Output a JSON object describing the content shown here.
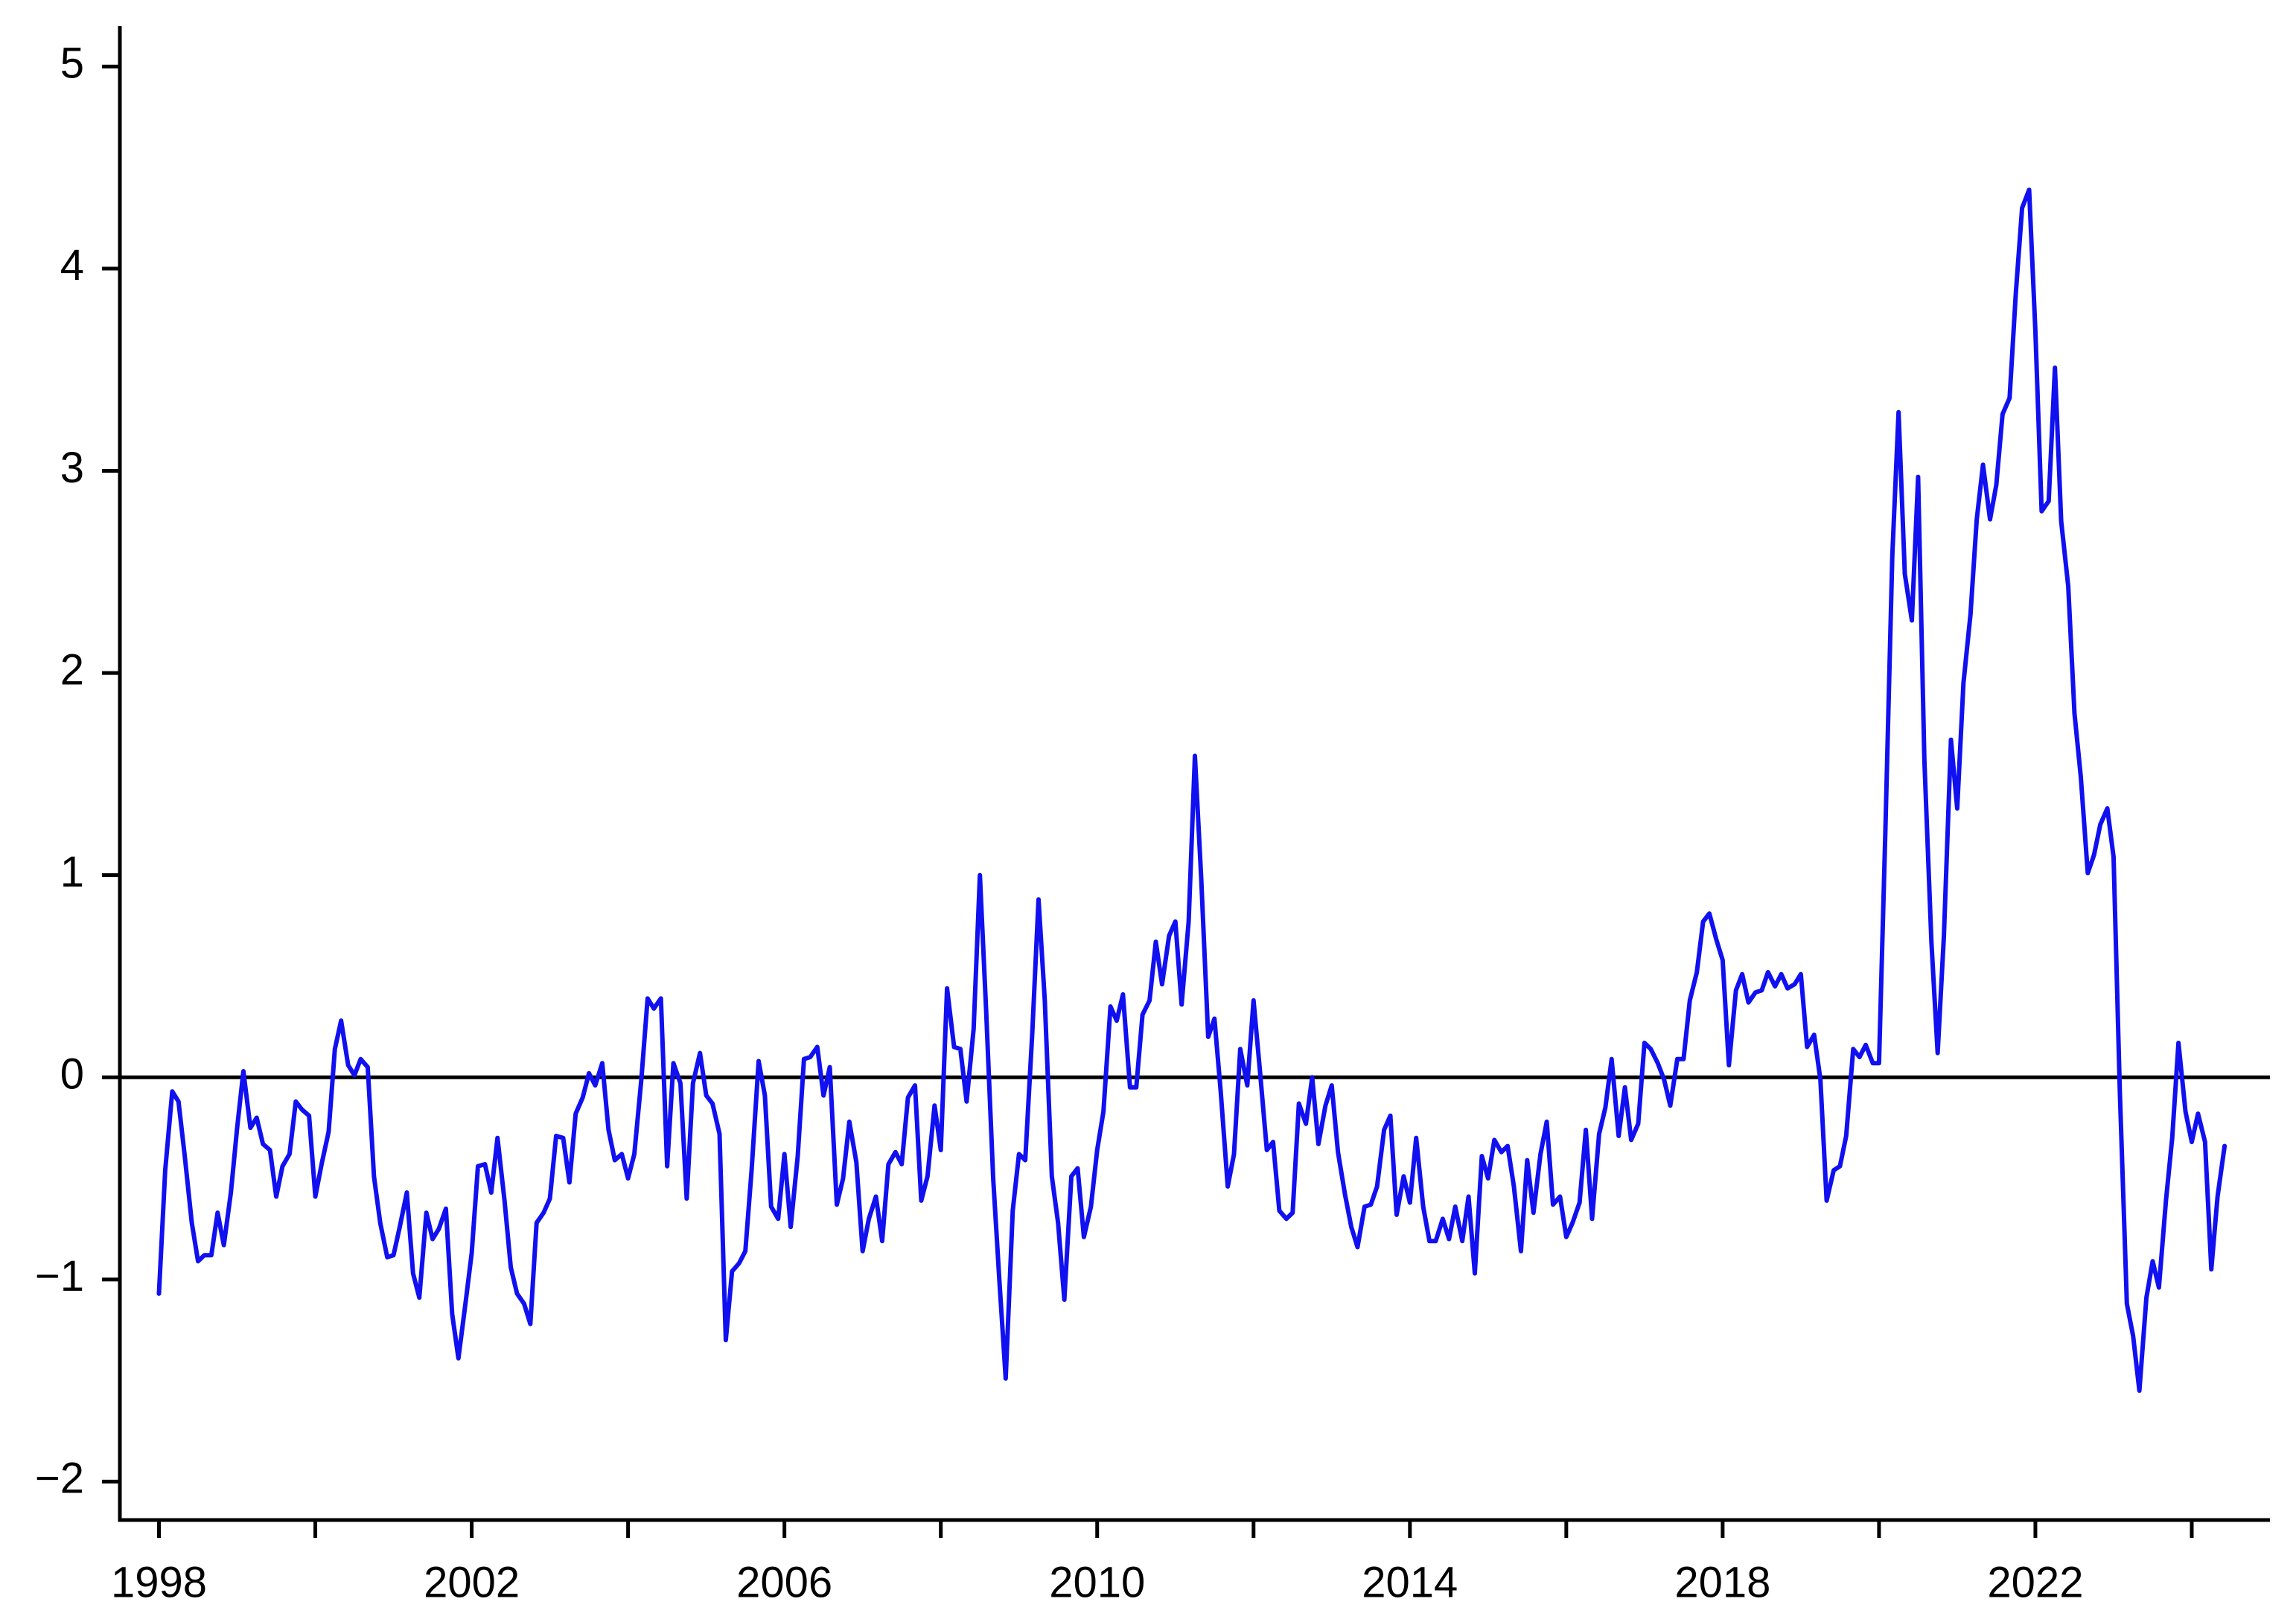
{
  "chart_data": {
    "type": "line",
    "x": [
      1998,
      1998.08,
      1998.17,
      1998.25,
      1998.33,
      1998.42,
      1998.5,
      1998.58,
      1998.67,
      1998.75,
      1998.83,
      1998.92,
      1999,
      1999.08,
      1999.17,
      1999.25,
      1999.33,
      1999.42,
      1999.5,
      1999.58,
      1999.67,
      1999.75,
      1999.83,
      1999.92,
      2000,
      2000.08,
      2000.17,
      2000.25,
      2000.33,
      2000.42,
      2000.5,
      2000.58,
      2000.67,
      2000.75,
      2000.83,
      2000.92,
      2001,
      2001.08,
      2001.17,
      2001.25,
      2001.33,
      2001.42,
      2001.5,
      2001.58,
      2001.67,
      2001.75,
      2001.83,
      2001.92,
      2002,
      2002.08,
      2002.17,
      2002.25,
      2002.33,
      2002.42,
      2002.5,
      2002.58,
      2002.67,
      2002.75,
      2002.83,
      2002.92,
      2003,
      2003.08,
      2003.17,
      2003.25,
      2003.33,
      2003.42,
      2003.5,
      2003.58,
      2003.67,
      2003.75,
      2003.83,
      2003.92,
      2004,
      2004.08,
      2004.17,
      2004.25,
      2004.33,
      2004.42,
      2004.5,
      2004.58,
      2004.67,
      2004.75,
      2004.83,
      2004.92,
      2005,
      2005.08,
      2005.17,
      2005.25,
      2005.33,
      2005.42,
      2005.5,
      2005.58,
      2005.67,
      2005.75,
      2005.83,
      2005.92,
      2006,
      2006.08,
      2006.17,
      2006.25,
      2006.33,
      2006.42,
      2006.5,
      2006.58,
      2006.67,
      2006.75,
      2006.83,
      2006.92,
      2007,
      2007.08,
      2007.17,
      2007.25,
      2007.33,
      2007.42,
      2007.5,
      2007.58,
      2007.67,
      2007.75,
      2007.83,
      2007.92,
      2008,
      2008.08,
      2008.17,
      2008.25,
      2008.33,
      2008.42,
      2008.5,
      2008.58,
      2008.67,
      2008.75,
      2008.83,
      2008.92,
      2009,
      2009.08,
      2009.17,
      2009.25,
      2009.33,
      2009.42,
      2009.5,
      2009.58,
      2009.67,
      2009.75,
      2009.83,
      2009.92,
      2010,
      2010.08,
      2010.17,
      2010.25,
      2010.33,
      2010.42,
      2010.5,
      2010.58,
      2010.67,
      2010.75,
      2010.83,
      2010.92,
      2011,
      2011.08,
      2011.17,
      2011.25,
      2011.33,
      2011.42,
      2011.5,
      2011.58,
      2011.67,
      2011.75,
      2011.83,
      2011.92,
      2012,
      2012.08,
      2012.17,
      2012.25,
      2012.33,
      2012.42,
      2012.5,
      2012.58,
      2012.67,
      2012.75,
      2012.83,
      2012.92,
      2013,
      2013.08,
      2013.17,
      2013.25,
      2013.33,
      2013.42,
      2013.5,
      2013.58,
      2013.67,
      2013.75,
      2013.83,
      2013.92,
      2014,
      2014.08,
      2014.17,
      2014.25,
      2014.33,
      2014.42,
      2014.5,
      2014.58,
      2014.67,
      2014.75,
      2014.83,
      2014.92,
      2015,
      2015.08,
      2015.17,
      2015.25,
      2015.33,
      2015.42,
      2015.5,
      2015.58,
      2015.67,
      2015.75,
      2015.83,
      2015.92,
      2016,
      2016.08,
      2016.17,
      2016.25,
      2016.33,
      2016.42,
      2016.5,
      2016.58,
      2016.67,
      2016.75,
      2016.83,
      2016.92,
      2017,
      2017.08,
      2017.17,
      2017.25,
      2017.33,
      2017.42,
      2017.5,
      2017.58,
      2017.67,
      2017.75,
      2017.83,
      2017.92,
      2018,
      2018.08,
      2018.17,
      2018.25,
      2018.33,
      2018.42,
      2018.5,
      2018.58,
      2018.67,
      2018.75,
      2018.83,
      2018.92,
      2019,
      2019.08,
      2019.17,
      2019.25,
      2019.33,
      2019.42,
      2019.5,
      2019.58,
      2019.67,
      2019.75,
      2019.83,
      2019.92,
      2020,
      2020.08,
      2020.17,
      2020.25,
      2020.33,
      2020.42,
      2020.5,
      2020.58,
      2020.67,
      2020.75,
      2020.83,
      2020.92,
      2021,
      2021.08,
      2021.17,
      2021.25,
      2021.33,
      2021.42,
      2021.5,
      2021.58,
      2021.67,
      2021.75,
      2021.83,
      2021.92,
      2022,
      2022.08,
      2022.17,
      2022.25,
      2022.33,
      2022.42,
      2022.5,
      2022.58,
      2022.67,
      2022.75,
      2022.83,
      2022.92,
      2023,
      2023.08,
      2023.17,
      2023.25,
      2023.33,
      2023.42,
      2023.5,
      2023.58,
      2023.67,
      2023.75,
      2023.83,
      2023.92,
      2024,
      2024.08,
      2024.17,
      2024.25,
      2024.33,
      2024.42
    ],
    "series": [
      {
        "color": "#1010f0",
        "values": [
          -1.07,
          -0.46,
          -0.07,
          -0.12,
          -0.39,
          -0.72,
          -0.91,
          -0.88,
          -0.88,
          -0.67,
          -0.83,
          -0.57,
          -0.25,
          0.03,
          -0.25,
          -0.2,
          -0.33,
          -0.36,
          -0.59,
          -0.44,
          -0.38,
          -0.12,
          -0.16,
          -0.19,
          -0.59,
          -0.43,
          -0.27,
          0.14,
          0.28,
          0.06,
          0.01,
          0.09,
          0.05,
          -0.49,
          -0.72,
          -0.89,
          -0.88,
          -0.74,
          -0.57,
          -0.97,
          -1.09,
          -0.67,
          -0.8,
          -0.75,
          -0.65,
          -1.17,
          -1.39,
          -1.12,
          -0.87,
          -0.44,
          -0.43,
          -0.57,
          -0.3,
          -0.61,
          -0.94,
          -1.07,
          -1.12,
          -1.22,
          -0.72,
          -0.67,
          -0.6,
          -0.29,
          -0.3,
          -0.52,
          -0.18,
          -0.1,
          0.02,
          -0.04,
          0.07,
          -0.26,
          -0.41,
          -0.38,
          -0.5,
          -0.38,
          -0.01,
          0.39,
          0.34,
          0.39,
          -0.44,
          0.07,
          -0.03,
          -0.6,
          -0.03,
          0.12,
          -0.09,
          -0.13,
          -0.28,
          -1.3,
          -0.96,
          -0.92,
          -0.86,
          -0.46,
          0.08,
          -0.09,
          -0.64,
          -0.7,
          -0.38,
          -0.74,
          -0.39,
          0.09,
          0.1,
          0.15,
          -0.09,
          0.05,
          -0.63,
          -0.5,
          -0.22,
          -0.42,
          -0.86,
          -0.7,
          -0.59,
          -0.81,
          -0.43,
          -0.37,
          -0.43,
          -0.1,
          -0.04,
          -0.61,
          -0.49,
          -0.14,
          -0.36,
          0.44,
          0.15,
          0.14,
          -0.12,
          0.24,
          1.0,
          0.33,
          -0.5,
          -1.01,
          -1.49,
          -0.66,
          -0.38,
          -0.41,
          0.22,
          0.88,
          0.38,
          -0.49,
          -0.72,
          -1.1,
          -0.49,
          -0.45,
          -0.79,
          -0.64,
          -0.36,
          -0.17,
          0.35,
          0.28,
          0.41,
          -0.05,
          -0.05,
          0.31,
          0.38,
          0.67,
          0.46,
          0.7,
          0.77,
          0.36,
          0.77,
          1.59,
          0.99,
          0.2,
          0.29,
          -0.07,
          -0.54,
          -0.38,
          0.14,
          -0.04,
          0.38,
          0.04,
          -0.36,
          -0.32,
          -0.66,
          -0.7,
          -0.67,
          -0.13,
          -0.23,
          0.0,
          -0.33,
          -0.14,
          -0.04,
          -0.37,
          -0.58,
          -0.74,
          -0.84,
          -0.64,
          -0.63,
          -0.54,
          -0.26,
          -0.19,
          -0.68,
          -0.49,
          -0.62,
          -0.3,
          -0.64,
          -0.81,
          -0.81,
          -0.7,
          -0.8,
          -0.64,
          -0.81,
          -0.59,
          -0.97,
          -0.39,
          -0.5,
          -0.31,
          -0.37,
          -0.34,
          -0.54,
          -0.86,
          -0.41,
          -0.67,
          -0.38,
          -0.22,
          -0.63,
          -0.59,
          -0.79,
          -0.72,
          -0.62,
          -0.26,
          -0.7,
          -0.28,
          -0.15,
          0.09,
          -0.29,
          -0.05,
          -0.31,
          -0.23,
          0.17,
          0.14,
          0.07,
          -0.01,
          -0.14,
          0.09,
          0.09,
          0.38,
          0.52,
          0.77,
          0.81,
          0.68,
          0.58,
          0.06,
          0.43,
          0.51,
          0.37,
          0.42,
          0.43,
          0.52,
          0.45,
          0.51,
          0.44,
          0.46,
          0.51,
          0.15,
          0.21,
          -0.01,
          -0.61,
          -0.46,
          -0.44,
          -0.29,
          0.14,
          0.1,
          0.16,
          0.07,
          0.07,
          1.2,
          2.58,
          3.29,
          2.49,
          2.26,
          2.97,
          1.57,
          0.67,
          0.12,
          0.7,
          1.67,
          1.33,
          1.95,
          2.29,
          2.76,
          3.03,
          2.76,
          2.93,
          3.28,
          3.36,
          3.88,
          4.3,
          4.39,
          3.69,
          2.8,
          2.85,
          3.51,
          2.75,
          2.43,
          1.8,
          1.49,
          1.01,
          1.1,
          1.25,
          1.33,
          1.09,
          -0.07,
          -1.12,
          -1.28,
          -1.55,
          -1.09,
          -0.91,
          -1.04,
          -0.61,
          -0.3,
          0.17,
          -0.17,
          -0.32,
          -0.18,
          -0.32,
          -0.95,
          -0.59,
          -0.34
        ]
      }
    ],
    "xlim": [
      1997.5,
      2025
    ],
    "xticks": [
      1998,
      2002,
      2006,
      2010,
      2014,
      2018,
      2022
    ],
    "xminorticks": [
      2000,
      2004,
      2008,
      2012,
      2016,
      2020,
      2024
    ],
    "ylim": [
      -2.19,
      5.2
    ],
    "yticks": [
      {
        "value": -2,
        "label": "−2"
      },
      {
        "value": -1,
        "label": "−1"
      },
      0,
      1,
      2,
      3,
      4,
      5
    ],
    "reference_line": 0,
    "grid": false
  }
}
